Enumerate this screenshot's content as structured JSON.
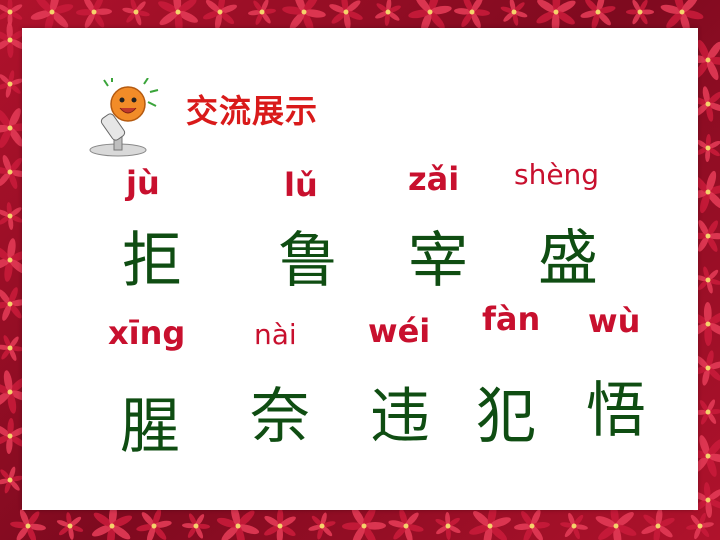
{
  "title": "交流展示",
  "icon": "microphone-icon",
  "colors": {
    "pinyin": "#c8102e",
    "hanzi": "#0f4d12",
    "title": "#d91a1a",
    "border": "#9c0f25"
  },
  "rows": [
    [
      {
        "pinyin": "jù",
        "hanzi": "拒"
      },
      {
        "pinyin": "lǔ",
        "hanzi": "鲁"
      },
      {
        "pinyin": "zǎi",
        "hanzi": "宰"
      },
      {
        "pinyin": "shèng",
        "hanzi": "盛"
      }
    ],
    [
      {
        "pinyin": "xīng",
        "hanzi": "腥"
      },
      {
        "pinyin": "nài",
        "hanzi": "奈"
      },
      {
        "pinyin": "wéi",
        "hanzi": "违"
      },
      {
        "pinyin": "fàn",
        "hanzi": "犯"
      },
      {
        "pinyin": "wù",
        "hanzi": "悟"
      }
    ]
  ]
}
